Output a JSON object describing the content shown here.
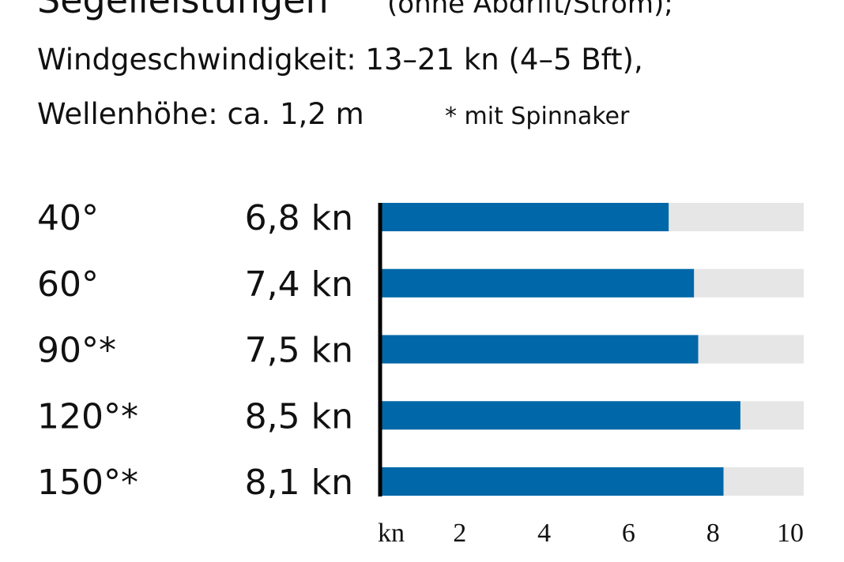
{
  "chart_data": {
    "type": "barh",
    "title": "Segelleistungen",
    "title_note": "(ohne Abdrift/Strom);",
    "subtitle": [
      "Windgeschwindigkeit: 13–21 kn (4–5 Bft),",
      "Wellenhöhe: ca. 1,2 m"
    ],
    "annotation": "* mit Spinnaker",
    "categories": [
      "40°",
      "60°",
      "90°*",
      "120°*",
      "150°*"
    ],
    "values": [
      6.8,
      7.4,
      7.5,
      8.5,
      8.1
    ],
    "value_labels": [
      "6,8 kn",
      "7,4 kn",
      "7,5 kn",
      "8,5 kn",
      "8,1 kn"
    ],
    "color": "#0068a8",
    "track_color": "#e6e6e6",
    "xlabel": "kn",
    "xlim": [
      0,
      10
    ],
    "xticks": [
      2,
      4,
      6,
      8,
      10
    ]
  }
}
